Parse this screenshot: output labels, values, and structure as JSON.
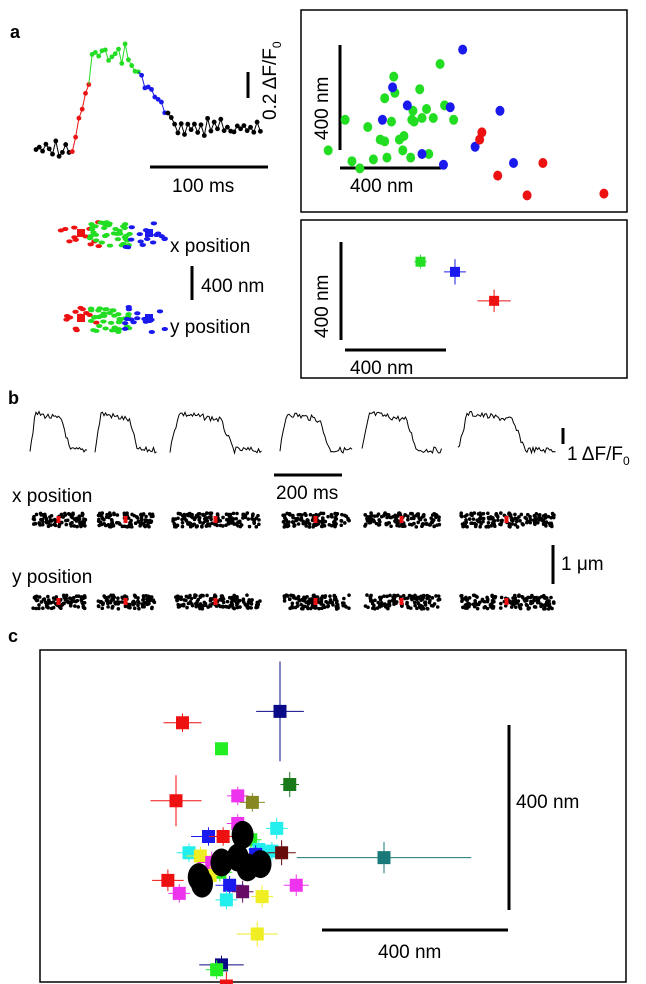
{
  "panels": {
    "a": {
      "letter": "a",
      "delta_f_scale": "0.2 ΔF/F",
      "delta_f_sub": "0",
      "time_scale": "100 ms",
      "x_position": "x position",
      "y_position": "y position",
      "trace_scale": "400 nm",
      "scatter_scale_y": "400 nm",
      "scatter_scale_x": "400 nm",
      "mean_scale_y": "400 nm",
      "mean_scale_x": "400 nm"
    },
    "b": {
      "letter": "b",
      "delta_f_scale": "1 ΔF/F",
      "delta_f_sub": "0",
      "time_scale": "200 ms",
      "x_position": "x position",
      "y_position": "y position",
      "position_scale": "1 μm"
    },
    "c": {
      "letter": "c",
      "scale_y": "400 nm",
      "scale_x": "400 nm"
    }
  },
  "colors": {
    "rise": "#ee1111",
    "peak": "#22dd22",
    "decay": "#1a1aee",
    "baseline": "#000000",
    "highlight": "#ee1111"
  },
  "chart_data": [
    {
      "type": "scatter",
      "panel": "a-top-right",
      "units": "nm",
      "series": [
        {
          "color": "#22dd22",
          "points": [
            [
              -225,
              195
            ],
            [
              -10,
              315
            ],
            [
              195,
              350
            ],
            [
              -20,
              190
            ],
            [
              80,
              190
            ],
            [
              -5,
              270
            ],
            [
              -70,
              140
            ],
            [
              105,
              280
            ],
            [
              135,
              225
            ],
            [
              215,
              235
            ],
            [
              255,
              195
            ],
            [
              -50,
              255
            ],
            [
              115,
              200
            ],
            [
              165,
              200
            ],
            [
              70,
              195
            ],
            [
              75,
              220
            ],
            [
              35,
              150
            ],
            [
              -40,
              90
            ],
            [
              -125,
              175
            ],
            [
              -100,
              85
            ],
            [
              145,
              100
            ],
            [
              15,
              140
            ],
            [
              -195,
              80
            ],
            [
              -160,
              60
            ],
            [
              30,
              110
            ],
            [
              65,
              90
            ],
            [
              -300,
              110
            ],
            [
              -50,
              135
            ]
          ]
        },
        {
          "color": "#1a1aee",
          "points": [
            [
              -15,
              285
            ],
            [
              295,
              390
            ],
            [
              460,
              220
            ],
            [
              350,
              120
            ],
            [
              210,
              70
            ],
            [
              520,
              75
            ],
            [
              50,
              235
            ],
            [
              240,
              230
            ],
            [
              115,
              100
            ],
            [
              -60,
              195
            ]
          ]
        },
        {
          "color": "#ee1111",
          "points": [
            [
              370,
              140
            ],
            [
              380,
              160
            ],
            [
              450,
              40
            ],
            [
              650,
              75
            ],
            [
              580,
              -15
            ],
            [
              920,
              -10
            ]
          ]
        }
      ]
    },
    {
      "type": "scatter",
      "panel": "a-bottom-right",
      "units": "nm",
      "series": [
        {
          "color": "#22dd22",
          "points": [
            [
              150,
              70
            ]
          ],
          "err_x": 10,
          "err_y": 10
        },
        {
          "color": "#1a1aee",
          "points": [
            [
              300,
              35
            ]
          ],
          "err_x": 30,
          "err_y": 30
        },
        {
          "color": "#ee1111",
          "points": [
            [
              470,
              -65
            ]
          ],
          "err_x": 55,
          "err_y": 25
        }
      ]
    },
    {
      "type": "scatter",
      "panel": "c",
      "units": "nm",
      "markers": [
        {
          "color": "#ee1111",
          "x": -300,
          "y": 570,
          "ex": 40,
          "ey": 10
        },
        {
          "color": "#22ee22",
          "x": -180,
          "y": 490,
          "ex": 0,
          "ey": 0
        },
        {
          "color": "#0a0a88",
          "x": 0,
          "y": 605,
          "ex": 55,
          "ey": 135
        },
        {
          "color": "#ee1111",
          "x": -320,
          "y": 330,
          "ex": 60,
          "ey": 60
        },
        {
          "color": "#1a7a1a",
          "x": 30,
          "y": 380,
          "ex": 10,
          "ey": 20
        },
        {
          "color": "#ee33ee",
          "x": -130,
          "y": 345,
          "ex": 15,
          "ey": 10
        },
        {
          "color": "#888822",
          "x": -85,
          "y": 325,
          "ex": 20,
          "ey": 10
        },
        {
          "color": "#ee33ee",
          "x": -130,
          "y": 260,
          "ex": 15,
          "ey": 10
        },
        {
          "color": "#1a1aee",
          "x": -220,
          "y": 220,
          "ex": 35,
          "ey": 10
        },
        {
          "color": "#ee1111",
          "x": -175,
          "y": 220,
          "ex": 25,
          "ey": 10
        },
        {
          "color": "#22ee22",
          "x": -90,
          "y": 210,
          "ex": 15,
          "ey": 10
        },
        {
          "color": "#22eeee",
          "x": -10,
          "y": 245,
          "ex": 15,
          "ey": 15
        },
        {
          "color": "#22eeee",
          "x": -280,
          "y": 170,
          "ex": 20,
          "ey": 10
        },
        {
          "color": "#eeee22",
          "x": -245,
          "y": 160,
          "ex": 25,
          "ey": 10
        },
        {
          "color": "#22eeee",
          "x": -65,
          "y": 180,
          "ex": 15,
          "ey": 10
        },
        {
          "color": "#1a1aee",
          "x": -75,
          "y": 165,
          "ex": 15,
          "ey": 10
        },
        {
          "color": "#ee33ee",
          "x": -210,
          "y": 140,
          "ex": 25,
          "ey": 15
        },
        {
          "color": "#22ee22",
          "x": -185,
          "y": 110,
          "ex": 20,
          "ey": 10
        },
        {
          "color": "#eeee22",
          "x": -215,
          "y": 100,
          "ex": 15,
          "ey": 10
        },
        {
          "color": "#1a1aee",
          "x": -155,
          "y": 70,
          "ex": 25,
          "ey": 10
        },
        {
          "color": "#22eeee",
          "x": -25,
          "y": 175,
          "ex": 15,
          "ey": 10
        },
        {
          "color": "#660a0a",
          "x": 5,
          "y": 170,
          "ex": 25,
          "ey": 20
        },
        {
          "color": "#1a7a7a",
          "x": 320,
          "y": 155,
          "ex": 250,
          "ey": 30
        },
        {
          "color": "#ee1111",
          "x": -345,
          "y": 85,
          "ex": 30,
          "ey": 15
        },
        {
          "color": "#ee33ee",
          "x": -310,
          "y": 45,
          "ex": 15,
          "ey": 10
        },
        {
          "color": "#660a66",
          "x": -115,
          "y": 50,
          "ex": 15,
          "ey": 15
        },
        {
          "color": "#ee33ee",
          "x": 50,
          "y": 70,
          "ex": 20,
          "ey": 15
        },
        {
          "color": "#eeee22",
          "x": -55,
          "y": 35,
          "ex": 15,
          "ey": 15
        },
        {
          "color": "#22eeee",
          "x": -165,
          "y": 25,
          "ex": 15,
          "ey": 10
        },
        {
          "color": "#eeee22",
          "x": -70,
          "y": -80,
          "ex": 45,
          "ey": 20
        },
        {
          "color": "#0a0a88",
          "x": -180,
          "y": -175,
          "ex": 50,
          "ey": 10
        },
        {
          "color": "#22ee22",
          "x": -195,
          "y": -190,
          "ex": 15,
          "ey": 10
        },
        {
          "color": "#ee1111",
          "x": -165,
          "y": -240,
          "ex": 10,
          "ey": 25
        },
        {
          "color": "#888822",
          "x": -130,
          "y": -305,
          "ex": 20,
          "ey": 20
        }
      ],
      "ellipses": [
        {
          "color": "#000000",
          "x": -115,
          "y": 225
        },
        {
          "color": "#000000",
          "x": -180,
          "y": 140
        },
        {
          "color": "#000000",
          "x": -130,
          "y": 155
        },
        {
          "color": "#000000",
          "x": -100,
          "y": 125
        },
        {
          "color": "#000000",
          "x": -60,
          "y": 135
        },
        {
          "color": "#000000",
          "x": -250,
          "y": 95
        },
        {
          "color": "#000000",
          "x": -240,
          "y": 75
        }
      ]
    }
  ]
}
